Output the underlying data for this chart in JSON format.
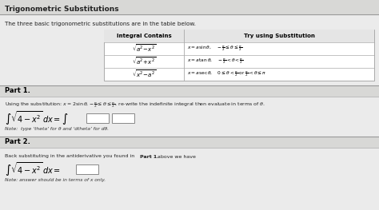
{
  "title": "Trigonometric Substitutions",
  "intro": "The three basic trigonometric substitutions are in the table below.",
  "table_col1_header": "Integral Contains",
  "table_col2_header": "Try using Substitution",
  "part1_label": "Part 1.",
  "part1_text1": "Using the substitution: ",
  "part1_text2": ", re-write the indefinite integral then evaluate in terms of θ.",
  "part1_note": "Note:  type ‘theta’ for θ and ‘dtheta’ for dθ.",
  "part2_label": "Part 2.",
  "part2_text1": "Back substituting in the antiderivative you found in ",
  "part2_text2": "Part 1.",
  "part2_text3": " above we have",
  "part2_note": "Note: answer should be in terms of x only.",
  "bg_color": "#ebebeb",
  "white": "#ffffff",
  "title_bar_color": "#d8d8d6",
  "section_bar_color": "#d8d8d6",
  "border_color": "#b0b0b0",
  "text_color": "#222222",
  "note_color": "#333333"
}
